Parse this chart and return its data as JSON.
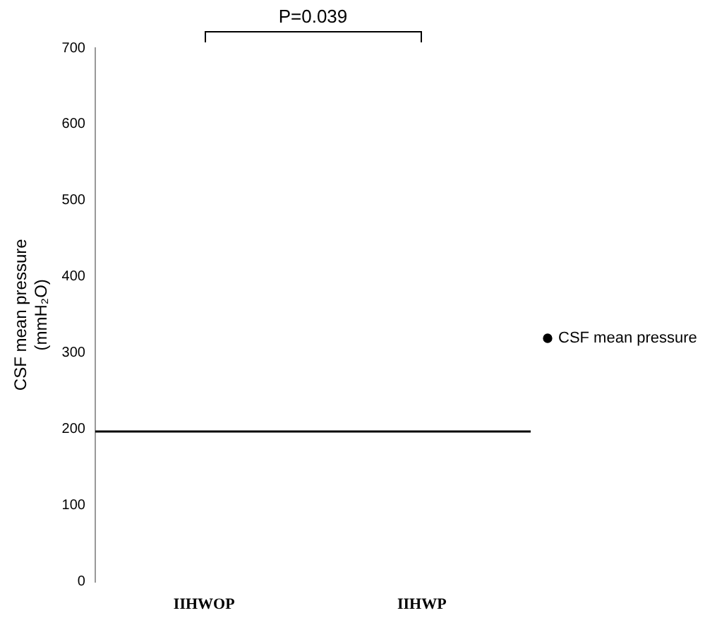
{
  "chart_data": {
    "type": "line",
    "ylabel": "CSF mean pressure (mmH₂O)",
    "categories": [
      "IIHWOP",
      "IIHWP"
    ],
    "series": [
      {
        "name": "CSF mean pressure",
        "color": "#000000",
        "values": [
          null,
          null
        ]
      }
    ],
    "ylim": [
      0,
      700
    ],
    "yticks": [
      0,
      100,
      200,
      300,
      400,
      500,
      600,
      700
    ],
    "ref_lines": [
      {
        "axis": "y",
        "value": 197,
        "color": "#000000"
      }
    ],
    "annotations": [
      "P=0.039"
    ],
    "marker": "circle",
    "legend": "right",
    "grid": false
  }
}
